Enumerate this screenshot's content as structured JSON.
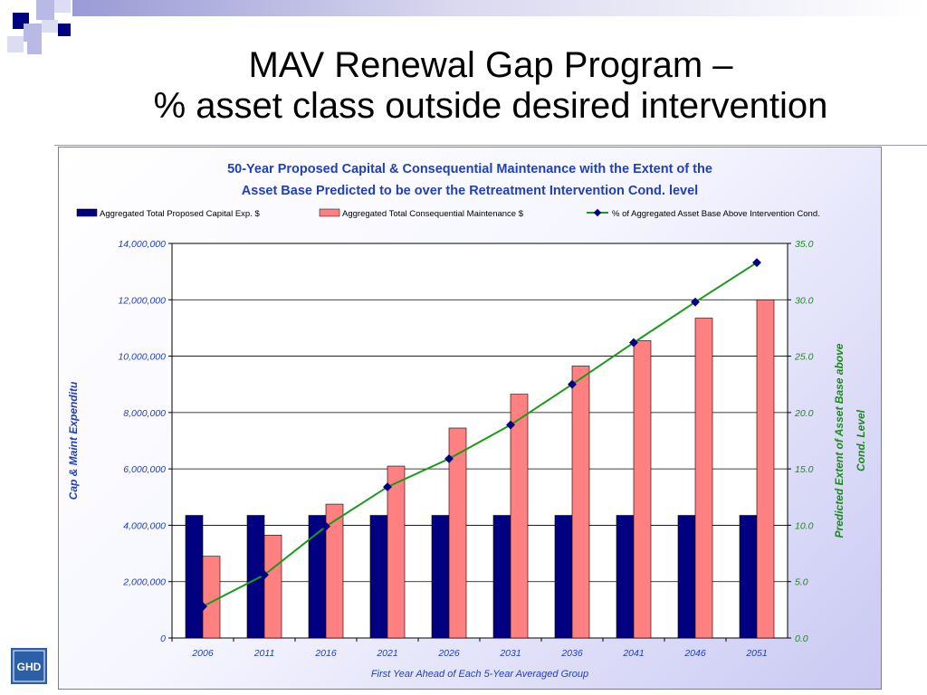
{
  "slide": {
    "title_line1": "MAV Renewal Gap Program –",
    "title_line2": "% asset class outside desired intervention",
    "logo_text": "GHD"
  },
  "colors": {
    "capital": "#000080",
    "maintenance": "#ff8080",
    "line": "#1a9a1a",
    "marker": "#000080",
    "title_blue": "#1f3fbf",
    "axis_right": "#1a8a1a"
  },
  "chart_data": {
    "type": "bar",
    "title_line1": "50-Year Proposed Capital & Consequential Maintenance with the Extent of the",
    "title_line2": "Asset Base Predicted to be over the Retreatment Intervention Cond. level",
    "categories": [
      "2006",
      "2011",
      "2016",
      "2021",
      "2026",
      "2031",
      "2036",
      "2041",
      "2046",
      "2051"
    ],
    "series": [
      {
        "name": "Aggregated Total Proposed Capital Exp. $",
        "kind": "bar",
        "axis": "left",
        "values": [
          4350000,
          4350000,
          4350000,
          4350000,
          4350000,
          4350000,
          4350000,
          4350000,
          4350000,
          4350000
        ]
      },
      {
        "name": "Aggregated Total Consequential Maintenance $",
        "kind": "bar",
        "axis": "left",
        "values": [
          2900000,
          3650000,
          4750000,
          6100000,
          7450000,
          8650000,
          9650000,
          10550000,
          11350000,
          12000000
        ]
      },
      {
        "name": "% of Aggregated Asset Base Above Intervention Cond.",
        "kind": "line",
        "axis": "right",
        "values": [
          2.8,
          5.6,
          9.9,
          13.4,
          15.9,
          18.9,
          22.5,
          26.2,
          29.8,
          33.3
        ]
      }
    ],
    "xlabel": "First Year Ahead of Each 5-Year Averaged Group",
    "ylabel": "Cap & Maint Expenditu",
    "ylabel_right_line1": "Predicted Extent of Asset Base above",
    "ylabel_right_line2": "Cond. Level",
    "ylim": [
      0,
      14000000
    ],
    "ylim_right": [
      0,
      35
    ],
    "yticks": [
      "0",
      "2,000,000",
      "4,000,000",
      "6,000,000",
      "8,000,000",
      "10,000,000",
      "12,000,000",
      "14,000,000"
    ],
    "yticks_right": [
      "0.0",
      "5.0",
      "10.0",
      "15.0",
      "20.0",
      "25.0",
      "30.0",
      "35.0"
    ],
    "grid": true,
    "legend_position": "top"
  }
}
